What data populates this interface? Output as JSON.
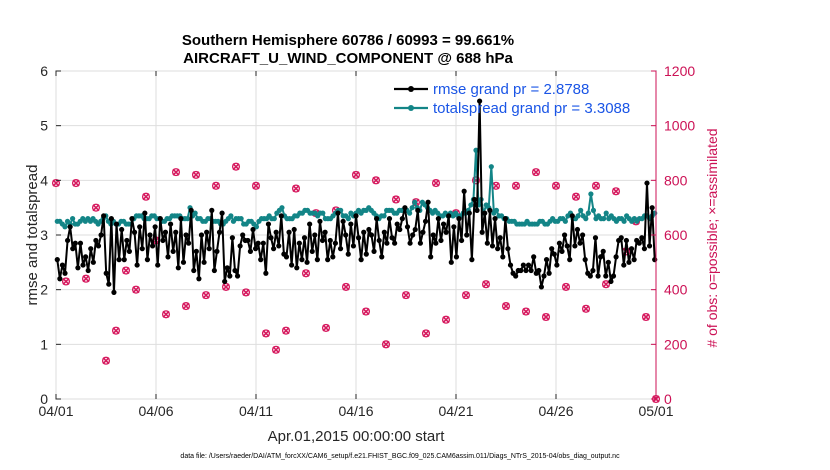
{
  "colors": {
    "rmse": "#000000",
    "spread": "#138587",
    "obs": "#d6195e",
    "legend_text": "#1a55e6",
    "axis": "#262626",
    "right_axis": "#cc1155"
  },
  "chart_data": {
    "type": "line",
    "title_line1": "Southern Hemisphere 60786 / 60993 = 99.661%",
    "title_line2": "AIRCRAFT_U_WIND_COMPONENT @ 688 hPa",
    "xlabel": "Apr.01,2015 00:00:00 start",
    "ylabel": "rmse and totalspread",
    "y2label": "# of obs: o=possible; ×=assimilated",
    "xlim": [
      0,
      30
    ],
    "ylim": [
      0,
      6
    ],
    "y2lim": [
      0,
      1200
    ],
    "x_tick_values": [
      0,
      5,
      10,
      15,
      20,
      25,
      30
    ],
    "x_tick_labels": [
      "04/01",
      "04/06",
      "04/11",
      "04/16",
      "04/21",
      "04/26",
      "05/01"
    ],
    "y_tick_labels": [
      "0",
      "1",
      "2",
      "3",
      "4",
      "5",
      "6"
    ],
    "y2_tick_labels": [
      "0",
      "200",
      "400",
      "600",
      "800",
      "1000",
      "1200"
    ],
    "legend": [
      {
        "name": "rmse grand pr = 2.8788"
      },
      {
        "name": "totalspread grand pr = 3.3088"
      }
    ],
    "footnote": "data file: /Users/raeder/DAI/ATM_forcXX/CAM6_setup/f.e21.FHIST_BGC.f09_025.CAM6assim.011/Diags_NTrS_2015-04/obs_diag_output.nc",
    "rmse": [
      2.55,
      2.2,
      2.45,
      2.3,
      2.9,
      3.15,
      2.75,
      2.85,
      2.4,
      2.85,
      2.45,
      2.6,
      2.35,
      2.75,
      2.5,
      2.9,
      2.8,
      3.0,
      3.35,
      2.3,
      2.1,
      3.3,
      1.95,
      3.2,
      2.55,
      3.1,
      2.55,
      2.9,
      2.7,
      3.3,
      3.05,
      2.45,
      3.15,
      2.75,
      3.4,
      2.55,
      3.0,
      2.8,
      3.15,
      2.45,
      3.3,
      2.9,
      3.05,
      2.6,
      3.2,
      2.7,
      3.05,
      2.4,
      3.3,
      2.5,
      3.0,
      2.85,
      3.45,
      2.35,
      2.7,
      2.2,
      3.0,
      2.5,
      3.05,
      2.75,
      3.45,
      2.35,
      2.7,
      3.05,
      3.4,
      2.15,
      2.4,
      2.25,
      2.95,
      2.35,
      2.25,
      2.8,
      3.0,
      2.9,
      2.9,
      2.7,
      3.1,
      2.75,
      2.85,
      2.55,
      2.85,
      2.3,
      3.2,
      2.95,
      2.75,
      3.05,
      2.8,
      3.35,
      2.65,
      2.6,
      3.05,
      2.45,
      3.1,
      2.4,
      2.85,
      2.55,
      2.95,
      2.5,
      3.2,
      2.7,
      3.0,
      2.55,
      3.25,
      2.9,
      3.05,
      2.55,
      2.9,
      2.6,
      2.85,
      3.4,
      2.75,
      3.25,
      3.0,
      2.65,
      3.2,
      2.8,
      3.35,
      2.95,
      2.55,
      3.05,
      2.65,
      3.1,
      3.0,
      2.7,
      3.3,
      2.9,
      2.6,
      3.05,
      2.85,
      3.3,
      2.95,
      2.85,
      3.2,
      3.1,
      3.3,
      3.5,
      3.15,
      2.85,
      3.0,
      3.1,
      3.45,
      2.85,
      3.05,
      3.25,
      3.6,
      2.6,
      3.0,
      2.85,
      3.3,
      2.9,
      3.2,
      3.05,
      3.35,
      2.5,
      3.15,
      2.6,
      3.3,
      2.9,
      3.8,
      3.0,
      3.4,
      2.55,
      3.65,
      3.45,
      5.45,
      3.05,
      3.4,
      2.85,
      3.45,
      2.8,
      3.3,
      2.75,
      2.95,
      2.6,
      3.3,
      2.75,
      2.45,
      2.3,
      2.25,
      2.35,
      2.35,
      2.45,
      2.35,
      2.45,
      2.35,
      2.6,
      2.3,
      2.35,
      2.05,
      2.25,
      2.55,
      2.3,
      2.75,
      2.65,
      2.45,
      2.85,
      2.7,
      3.0,
      2.8,
      2.55,
      3.35,
      2.8,
      3.1,
      2.85,
      3.0,
      2.55,
      2.3,
      2.25,
      2.35,
      2.95,
      2.25,
      2.6,
      2.7,
      2.25,
      2.5,
      2.15,
      2.25,
      2.6,
      2.9,
      2.95,
      2.45,
      2.9,
      2.5,
      2.75,
      2.55,
      2.9,
      2.85,
      2.95,
      2.75,
      3.95,
      2.8,
      3.5,
      2.55
    ],
    "totalspread": [
      3.25,
      3.25,
      3.2,
      3.15,
      3.25,
      3.2,
      3.3,
      3.2,
      3.2,
      3.25,
      3.3,
      3.25,
      3.3,
      3.25,
      3.3,
      3.25,
      3.2,
      3.25,
      3.3,
      3.35,
      3.25,
      3.2,
      3.25,
      3.2,
      3.2,
      3.25,
      3.25,
      3.2,
      3.2,
      3.2,
      3.3,
      3.35,
      3.35,
      3.35,
      3.3,
      3.3,
      3.3,
      3.35,
      3.35,
      3.3,
      3.3,
      3.25,
      3.25,
      3.3,
      3.3,
      3.35,
      3.35,
      3.35,
      3.35,
      3.3,
      3.3,
      3.3,
      3.5,
      3.35,
      3.4,
      3.3,
      3.3,
      3.25,
      3.25,
      3.3,
      3.3,
      3.25,
      3.25,
      3.25,
      3.2,
      3.2,
      3.25,
      3.3,
      3.35,
      3.25,
      3.3,
      3.3,
      3.3,
      3.2,
      3.2,
      3.25,
      3.25,
      3.2,
      3.15,
      3.25,
      3.3,
      3.3,
      3.3,
      3.35,
      3.3,
      3.3,
      3.4,
      3.45,
      3.5,
      3.35,
      3.3,
      3.3,
      3.3,
      3.35,
      3.35,
      3.4,
      3.4,
      3.45,
      3.45,
      3.4,
      3.4,
      3.4,
      3.35,
      3.4,
      3.4,
      3.3,
      3.3,
      3.3,
      3.35,
      3.4,
      3.45,
      3.45,
      3.35,
      3.35,
      3.3,
      3.4,
      3.35,
      3.4,
      3.45,
      3.4,
      3.45,
      3.45,
      3.5,
      3.45,
      3.4,
      3.35,
      3.3,
      3.35,
      3.35,
      3.45,
      3.45,
      3.45,
      3.4,
      3.4,
      3.45,
      3.45,
      3.45,
      3.45,
      3.4,
      3.5,
      3.6,
      3.5,
      3.45,
      3.6,
      3.55,
      3.5,
      3.45,
      3.4,
      3.45,
      3.4,
      3.35,
      3.35,
      3.4,
      3.35,
      3.4,
      3.35,
      3.4,
      3.35,
      3.35,
      3.4,
      3.4,
      3.45,
      3.55,
      3.65,
      4.55,
      3.55,
      3.65,
      3.4,
      3.55,
      3.5,
      4.25,
      3.4,
      3.45,
      3.35,
      3.35,
      3.3,
      3.3,
      3.25,
      3.25,
      3.25,
      3.2,
      3.2,
      3.2,
      3.2,
      3.25,
      3.2,
      3.2,
      3.2,
      3.2,
      3.25,
      3.25,
      3.2,
      3.2,
      3.25,
      3.3,
      3.25,
      3.25,
      3.3,
      3.3,
      3.25,
      3.35,
      3.4,
      3.3,
      3.3,
      3.35,
      3.45,
      3.35,
      3.3,
      3.4,
      3.75,
      3.45,
      3.3,
      3.35,
      3.3,
      3.3,
      3.4,
      3.3,
      3.35,
      3.3,
      3.25,
      3.3,
      3.3,
      3.25,
      3.35,
      3.3,
      3.25,
      3.3,
      3.25,
      3.3,
      3.3,
      3.35,
      3.35,
      3.3,
      3.35,
      3.4
    ],
    "obs_possible_x": [
      0,
      0.5,
      1,
      1.5,
      2,
      2.5,
      3,
      3.5,
      4,
      4.5,
      5,
      5.5,
      6,
      6.5,
      7,
      7.5,
      8,
      8.5,
      9,
      9.5,
      10,
      10.5,
      11,
      11.5,
      12,
      12.5,
      13,
      13.5,
      14,
      14.5,
      15,
      15.5,
      16,
      16.5,
      17,
      17.5,
      18,
      18.5,
      19,
      19.5,
      20,
      20.5,
      21,
      21.5,
      22,
      22.5,
      23,
      23.5,
      24,
      24.5,
      25,
      25.5,
      26,
      26.5,
      27,
      27.5,
      28,
      28.5,
      29,
      29.5,
      30
    ],
    "obs_possible": [
      790,
      430,
      790,
      440,
      700,
      140,
      250,
      470,
      400,
      740,
      580,
      310,
      830,
      340,
      820,
      380,
      780,
      410,
      850,
      390,
      780,
      240,
      180,
      250,
      770,
      460,
      680,
      260,
      690,
      410,
      820,
      320,
      800,
      200,
      730,
      380,
      720,
      240,
      790,
      290,
      680,
      380,
      800,
      420,
      780,
      340,
      780,
      320,
      830,
      300,
      780,
      410,
      740,
      330,
      780,
      420,
      760,
      540,
      650,
      300,
      0
    ]
  }
}
